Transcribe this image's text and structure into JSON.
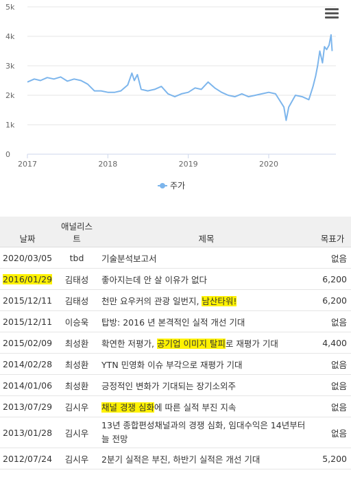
{
  "chart_data": {
    "type": "line",
    "title": "",
    "xlabel": "",
    "ylabel": "",
    "ylim": [
      0,
      5000
    ],
    "yticks": [
      "0",
      "1k",
      "2k",
      "3k",
      "4k",
      "5k"
    ],
    "xticks": [
      "2017",
      "2018",
      "2019",
      "2020"
    ],
    "legend_position": "bottom-center",
    "series": [
      {
        "name": "주가",
        "color": "#7cb5ec",
        "points": [
          [
            "2017-01-01",
            2450
          ],
          [
            "2017-02-01",
            2550
          ],
          [
            "2017-03-01",
            2500
          ],
          [
            "2017-04-01",
            2600
          ],
          [
            "2017-05-01",
            2550
          ],
          [
            "2017-06-01",
            2620
          ],
          [
            "2017-07-01",
            2480
          ],
          [
            "2017-08-01",
            2550
          ],
          [
            "2017-09-01",
            2500
          ],
          [
            "2017-10-01",
            2380
          ],
          [
            "2017-11-01",
            2150
          ],
          [
            "2017-12-01",
            2150
          ],
          [
            "2018-01-01",
            2100
          ],
          [
            "2018-02-01",
            2100
          ],
          [
            "2018-03-01",
            2150
          ],
          [
            "2018-04-01",
            2350
          ],
          [
            "2018-04-20",
            2750
          ],
          [
            "2018-05-01",
            2500
          ],
          [
            "2018-05-15",
            2700
          ],
          [
            "2018-06-01",
            2200
          ],
          [
            "2018-07-01",
            2150
          ],
          [
            "2018-08-01",
            2200
          ],
          [
            "2018-09-01",
            2300
          ],
          [
            "2018-10-01",
            2050
          ],
          [
            "2018-11-01",
            1950
          ],
          [
            "2018-12-01",
            2050
          ],
          [
            "2019-01-01",
            2100
          ],
          [
            "2019-02-01",
            2250
          ],
          [
            "2019-03-01",
            2200
          ],
          [
            "2019-04-01",
            2450
          ],
          [
            "2019-05-01",
            2250
          ],
          [
            "2019-06-01",
            2100
          ],
          [
            "2019-07-01",
            2000
          ],
          [
            "2019-08-01",
            1950
          ],
          [
            "2019-09-01",
            2050
          ],
          [
            "2019-10-01",
            1950
          ],
          [
            "2019-11-01",
            2000
          ],
          [
            "2019-12-01",
            2050
          ],
          [
            "2020-01-01",
            2100
          ],
          [
            "2020-02-01",
            2050
          ],
          [
            "2020-03-10",
            1600
          ],
          [
            "2020-03-20",
            1150
          ],
          [
            "2020-04-01",
            1600
          ],
          [
            "2020-05-01",
            2000
          ],
          [
            "2020-06-01",
            1950
          ],
          [
            "2020-07-01",
            1850
          ],
          [
            "2020-07-20",
            2300
          ],
          [
            "2020-08-01",
            2650
          ],
          [
            "2020-08-10",
            3000
          ],
          [
            "2020-08-20",
            3500
          ],
          [
            "2020-09-01",
            3100
          ],
          [
            "2020-09-10",
            3650
          ],
          [
            "2020-09-20",
            3550
          ],
          [
            "2020-10-01",
            3700
          ],
          [
            "2020-10-10",
            4050
          ],
          [
            "2020-10-15",
            3500
          ]
        ]
      }
    ]
  },
  "chart_menu_icon": "hamburger-menu-icon",
  "table": {
    "headers": {
      "date": "날짜",
      "analyst": "애널리스트",
      "title": "제목",
      "target": "목표가"
    },
    "highlight_color": "#fff200",
    "rows": [
      {
        "date": "2020/03/05",
        "analyst": "tbd",
        "title_parts": [
          {
            "t": "기술분석보고서",
            "hl": false
          }
        ],
        "target": "없음",
        "date_hl": false
      },
      {
        "date": "2016/01/29",
        "analyst": "김태성",
        "title_parts": [
          {
            "t": "좋아지는데 안 살 이유가 없다",
            "hl": false
          }
        ],
        "target": "6,200",
        "date_hl": true
      },
      {
        "date": "2015/12/11",
        "analyst": "김태성",
        "title_parts": [
          {
            "t": "천만 요우커의 관광 일번지, ",
            "hl": false
          },
          {
            "t": "남산타워!",
            "hl": true
          }
        ],
        "target": "6,200",
        "date_hl": false
      },
      {
        "date": "2015/12/11",
        "analyst": "이승욱",
        "title_parts": [
          {
            "t": "탑방: 2016 년 본격적인 실적 개선 기대",
            "hl": false
          }
        ],
        "target": "없음",
        "date_hl": false
      },
      {
        "date": "2015/02/09",
        "analyst": "최성환",
        "title_parts": [
          {
            "t": "확연한 저평가, ",
            "hl": false
          },
          {
            "t": "공기업 이미지 탈피",
            "hl": true
          },
          {
            "t": "로 재평가 기대",
            "hl": false
          }
        ],
        "target": "4,400",
        "date_hl": false
      },
      {
        "date": "2014/02/28",
        "analyst": "최성환",
        "title_parts": [
          {
            "t": "YTN 민영화 이슈 부각으로 재평가 기대",
            "hl": false
          }
        ],
        "target": "없음",
        "date_hl": false
      },
      {
        "date": "2014/01/06",
        "analyst": "최성환",
        "title_parts": [
          {
            "t": "긍정적인 변화가 기대되는 장기소외주",
            "hl": false
          }
        ],
        "target": "없음",
        "date_hl": false
      },
      {
        "date": "2013/07/29",
        "analyst": "김시우",
        "title_parts": [
          {
            "t": "채널 경쟁 심화",
            "hl": true
          },
          {
            "t": "에 따른 실적 부진 지속",
            "hl": false
          }
        ],
        "target": "없음",
        "date_hl": false
      },
      {
        "date": "2013/01/28",
        "analyst": "김시우",
        "title_parts": [
          {
            "t": "13년 종합편성채널과의 경쟁 심화, 임대수익은 14년부터 늘 전망",
            "hl": false
          }
        ],
        "target": "없음",
        "date_hl": false,
        "tall": true
      },
      {
        "date": "2012/07/24",
        "analyst": "김시우",
        "title_parts": [
          {
            "t": "2분기 실적은 부진, 하반기 실적은 개선 기대",
            "hl": false
          }
        ],
        "target": "5,200",
        "date_hl": false
      }
    ]
  }
}
